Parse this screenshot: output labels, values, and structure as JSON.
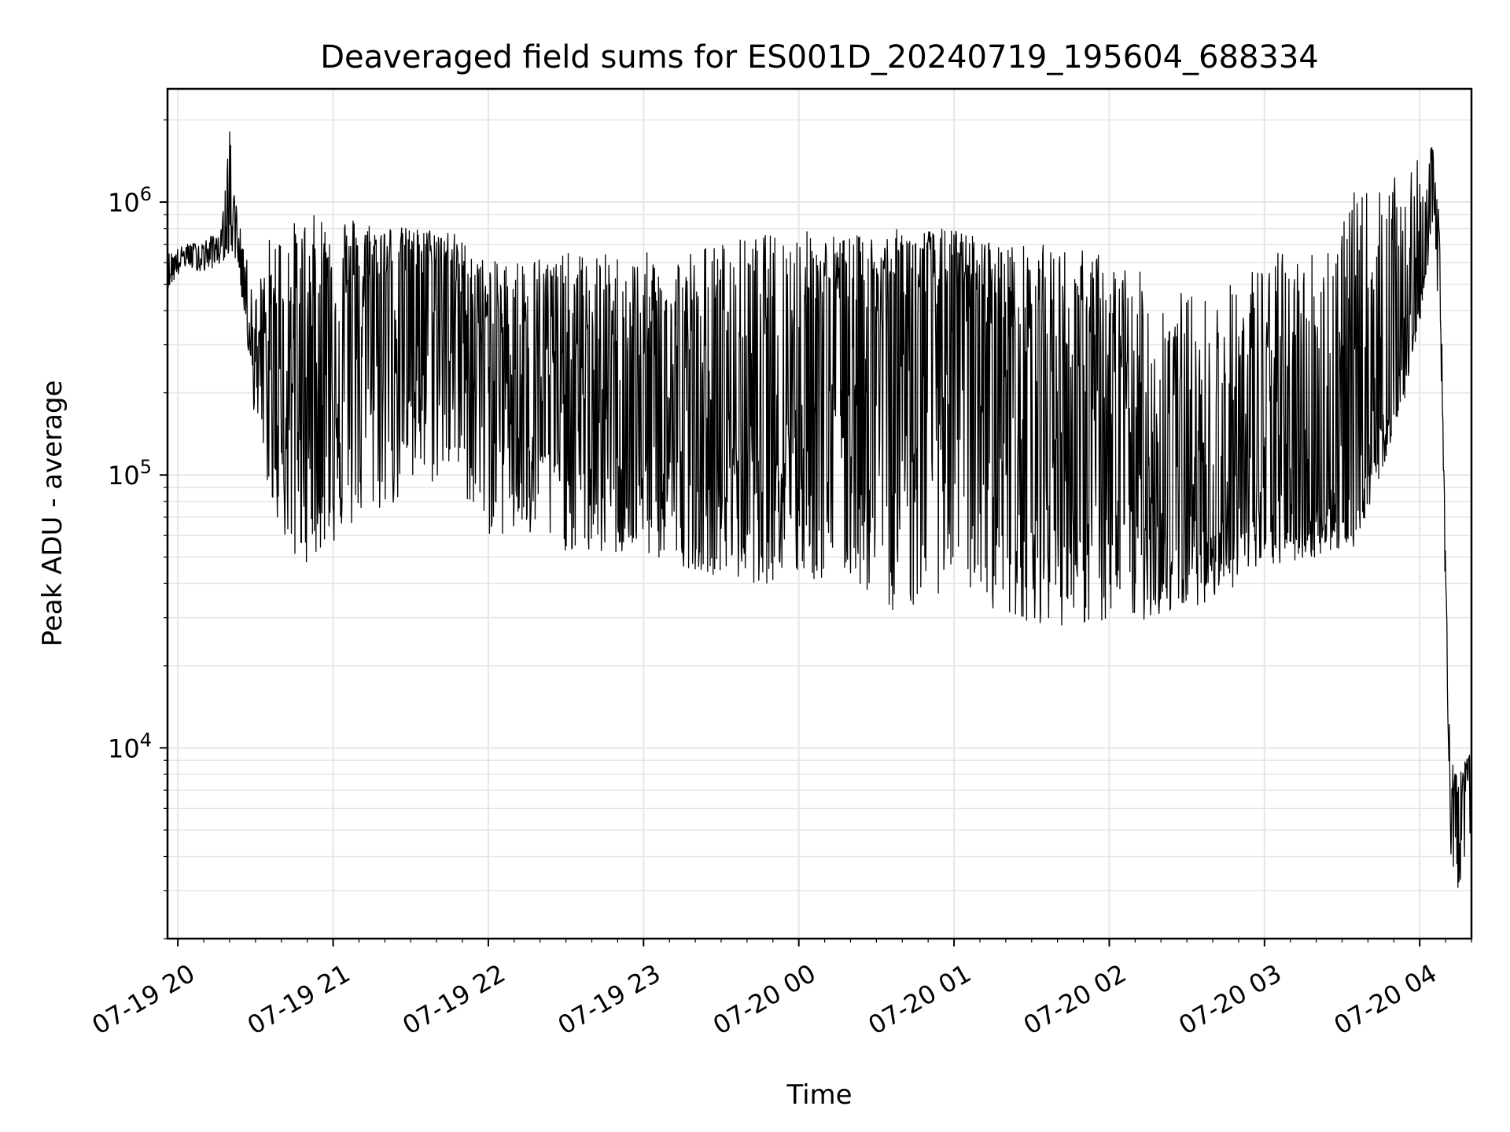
{
  "chart_data": {
    "type": "line",
    "title": "Deaveraged field sums for ES001D_20240719_195604_688334",
    "xlabel": "Time",
    "ylabel": "Peak ADU - average",
    "yscale": "log",
    "ylim": [
      2000,
      2600000
    ],
    "xlim": [
      "2024-07-19T19:56",
      "2024-07-20T04:20"
    ],
    "grid": true,
    "line_color": "#000000",
    "grid_color": "#e6e6e6",
    "x_ticks": [
      {
        "value": "2024-07-19T20:00",
        "label": "07-19 20"
      },
      {
        "value": "2024-07-19T21:00",
        "label": "07-19 21"
      },
      {
        "value": "2024-07-19T22:00",
        "label": "07-19 22"
      },
      {
        "value": "2024-07-19T23:00",
        "label": "07-19 23"
      },
      {
        "value": "2024-07-20T00:00",
        "label": "07-20 00"
      },
      {
        "value": "2024-07-20T01:00",
        "label": "07-20 01"
      },
      {
        "value": "2024-07-20T02:00",
        "label": "07-20 02"
      },
      {
        "value": "2024-07-20T03:00",
        "label": "07-20 03"
      },
      {
        "value": "2024-07-20T04:00",
        "label": "07-20 04"
      }
    ],
    "y_ticks": [
      {
        "value": 10000,
        "base": "10",
        "exp": "4"
      },
      {
        "value": 100000,
        "base": "10",
        "exp": "5"
      },
      {
        "value": 1000000,
        "base": "10",
        "exp": "6"
      }
    ],
    "series": [
      {
        "x": [
          "2024-07-19T19:56",
          "2024-07-19T20:03",
          "2024-07-19T20:10",
          "2024-07-19T20:17",
          "2024-07-19T20:20",
          "2024-07-19T20:23",
          "2024-07-19T20:26",
          "2024-07-19T20:30",
          "2024-07-19T20:36",
          "2024-07-19T20:45",
          "2024-07-19T21:00",
          "2024-07-19T21:15",
          "2024-07-19T21:30",
          "2024-07-19T21:45",
          "2024-07-19T22:00",
          "2024-07-19T22:20",
          "2024-07-19T22:40",
          "2024-07-19T23:00",
          "2024-07-19T23:20",
          "2024-07-19T23:40",
          "2024-07-20T00:00",
          "2024-07-20T00:20",
          "2024-07-20T00:40",
          "2024-07-20T01:00",
          "2024-07-20T01:20",
          "2024-07-20T01:40",
          "2024-07-20T02:00",
          "2024-07-20T02:20",
          "2024-07-20T02:40",
          "2024-07-20T03:00",
          "2024-07-20T03:20",
          "2024-07-20T03:35",
          "2024-07-20T03:45",
          "2024-07-20T03:55",
          "2024-07-20T04:00",
          "2024-07-20T04:05",
          "2024-07-20T04:08",
          "2024-07-20T04:10",
          "2024-07-20T04:12",
          "2024-07-20T04:15",
          "2024-07-20T04:20"
        ],
        "y": [
          550000,
          650000,
          640000,
          700000,
          1000000,
          750000,
          520000,
          280000,
          180000,
          230000,
          320000,
          450000,
          560000,
          520000,
          300000,
          240000,
          180000,
          170000,
          120000,
          150000,
          250000,
          330000,
          380000,
          420000,
          300000,
          170000,
          110000,
          85000,
          70000,
          95000,
          80000,
          85000,
          170000,
          300000,
          450000,
          1150000,
          500000,
          40000,
          6000,
          6500,
          9000
        ],
        "envelope_high": [
          650000,
          700000,
          720000,
          800000,
          1900000,
          900000,
          650000,
          450000,
          800000,
          850000,
          950000,
          850000,
          800000,
          800000,
          600000,
          650000,
          650000,
          650000,
          700000,
          750000,
          800000,
          750000,
          800000,
          800000,
          700000,
          700000,
          650000,
          500000,
          450000,
          650000,
          700000,
          1100000,
          1150000,
          1300000,
          1450000,
          1600000,
          800000,
          50000,
          9000,
          8000,
          10000
        ],
        "envelope_low": [
          480000,
          580000,
          550000,
          600000,
          650000,
          600000,
          350000,
          150000,
          80000,
          45000,
          55000,
          70000,
          80000,
          100000,
          60000,
          55000,
          50000,
          50000,
          45000,
          40000,
          40000,
          40000,
          30000,
          40000,
          30000,
          28000,
          28000,
          30000,
          35000,
          45000,
          50000,
          55000,
          100000,
          200000,
          350000,
          800000,
          300000,
          30000,
          4000,
          3000,
          5000
        ]
      }
    ]
  }
}
